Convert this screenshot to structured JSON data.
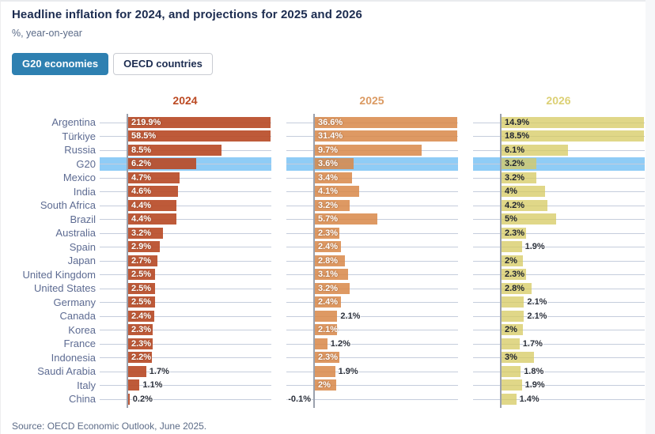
{
  "header": {
    "title": "Headline inflation for 2024, and projections for 2025 and 2026",
    "subtitle": "%, year-on-year"
  },
  "tabs": [
    {
      "label": "G20 economies",
      "active": true
    },
    {
      "label": "OECD countries",
      "active": false
    }
  ],
  "source": "Source: OECD Economic Outlook, June 2025.",
  "colors": {
    "accent_blue": "#2e80b1",
    "highlight_band": "#8fccf6",
    "grid": "#c5cddc",
    "axis": "#9ba1ad",
    "header_2024": "#bc4a23",
    "header_2025": "#db9a62",
    "header_2026": "#dcd075",
    "bar_2024": "rgba(184,76,40,0.92)",
    "bar_2025": "rgba(216,135,72,0.85)",
    "bar_2026": "rgba(214,202,96,0.75)"
  },
  "chart_data": {
    "type": "bar",
    "orientation": "horizontal",
    "unit": "%",
    "x_display_max": 12.9,
    "grid": true,
    "highlight_category": "G20",
    "categories": [
      "Argentina",
      "Türkiye",
      "Russia",
      "G20",
      "Mexico",
      "India",
      "South Africa",
      "Brazil",
      "Australia",
      "Spain",
      "Japan",
      "United Kingdom",
      "United States",
      "Germany",
      "Canada",
      "Korea",
      "France",
      "Indonesia",
      "Saudi Arabia",
      "Italy",
      "China"
    ],
    "series": [
      {
        "name": "2024",
        "values": [
          219.9,
          58.5,
          8.5,
          6.2,
          4.7,
          4.6,
          4.4,
          4.4,
          3.2,
          2.9,
          2.7,
          2.5,
          2.5,
          2.5,
          2.4,
          2.3,
          2.3,
          2.2,
          1.7,
          1.1,
          0.2
        ],
        "labels": [
          "219.9%",
          "58.5%",
          "8.5%",
          "6.2%",
          "4.7%",
          "4.6%",
          "4.4%",
          "4.4%",
          "3.2%",
          "2.9%",
          "2.7%",
          "2.5%",
          "2.5%",
          "2.5%",
          "2.4%",
          "2.3%",
          "2.3%",
          "2.2%",
          "1.7%",
          "1.1%",
          "0.2%"
        ],
        "label_inside": [
          true,
          true,
          true,
          true,
          true,
          true,
          true,
          true,
          true,
          true,
          true,
          true,
          true,
          true,
          true,
          true,
          true,
          true,
          false,
          false,
          false
        ]
      },
      {
        "name": "2025",
        "values": [
          36.6,
          31.4,
          9.7,
          3.6,
          3.4,
          4.1,
          3.2,
          5.7,
          2.3,
          2.4,
          2.8,
          3.1,
          3.2,
          2.4,
          2.1,
          2.1,
          1.2,
          2.3,
          1.9,
          2,
          -0.1
        ],
        "labels": [
          "36.6%",
          "31.4%",
          "9.7%",
          "3.6%",
          "3.4%",
          "4.1%",
          "3.2%",
          "5.7%",
          "2.3%",
          "2.4%",
          "2.8%",
          "3.1%",
          "3.2%",
          "2.4%",
          "2.1%",
          "2.1%",
          "1.2%",
          "2.3%",
          "1.9%",
          "2%",
          "-0.1%"
        ],
        "label_inside": [
          true,
          true,
          true,
          true,
          true,
          true,
          true,
          true,
          true,
          true,
          true,
          true,
          true,
          true,
          false,
          true,
          false,
          true,
          false,
          true,
          false
        ]
      },
      {
        "name": "2026",
        "values": [
          14.9,
          18.5,
          6.1,
          3.2,
          3.2,
          4,
          4.2,
          5,
          2.3,
          1.9,
          2,
          2.3,
          2.8,
          2.1,
          2.1,
          2,
          1.7,
          3,
          1.8,
          1.9,
          1.4
        ],
        "labels": [
          "14.9%",
          "18.5%",
          "6.1%",
          "3.2%",
          "3.2%",
          "4%",
          "4.2%",
          "5%",
          "2.3%",
          "1.9%",
          "2%",
          "2.3%",
          "2.8%",
          "2.1%",
          "2.1%",
          "2%",
          "1.7%",
          "3%",
          "1.8%",
          "1.9%",
          "1.4%"
        ],
        "label_inside": [
          true,
          true,
          true,
          true,
          true,
          true,
          true,
          true,
          true,
          false,
          true,
          true,
          true,
          false,
          false,
          true,
          false,
          true,
          false,
          false,
          false
        ]
      }
    ]
  }
}
